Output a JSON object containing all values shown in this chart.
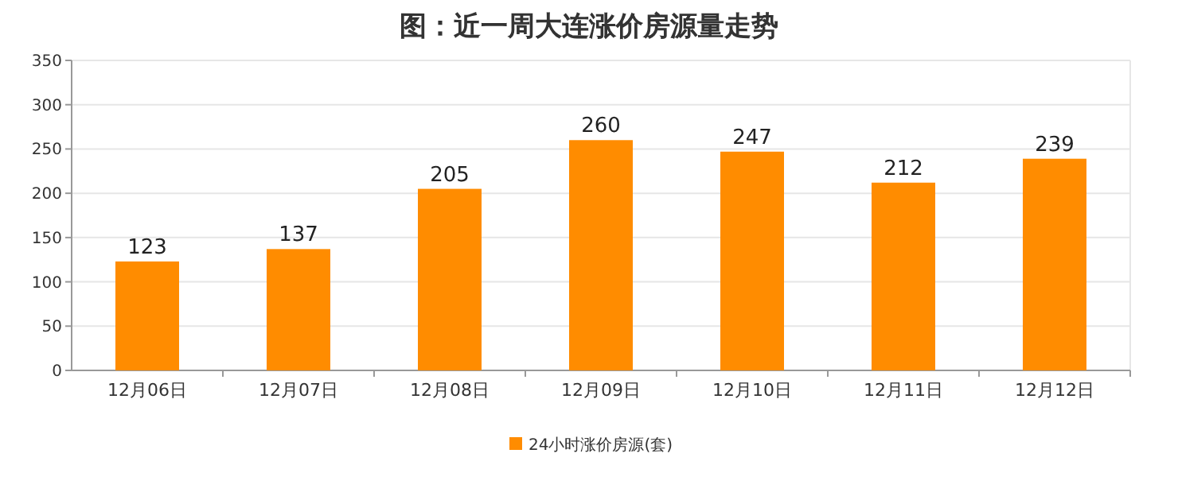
{
  "chart_data": {
    "type": "bar",
    "title": "图：近一周大连涨价房源量走势",
    "categories": [
      "12月06日",
      "12月07日",
      "12月08日",
      "12月09日",
      "12月10日",
      "12月11日",
      "12月12日"
    ],
    "series": [
      {
        "name": "24小时涨价房源(套)",
        "color": "#ff8c00",
        "values": [
          123,
          137,
          205,
          260,
          247,
          212,
          239
        ]
      }
    ],
    "ylim": [
      0,
      350
    ],
    "yticks": [
      0,
      50,
      100,
      150,
      200,
      250,
      300,
      350
    ],
    "grid": "y",
    "legend": "bottom",
    "data_labels": true
  }
}
